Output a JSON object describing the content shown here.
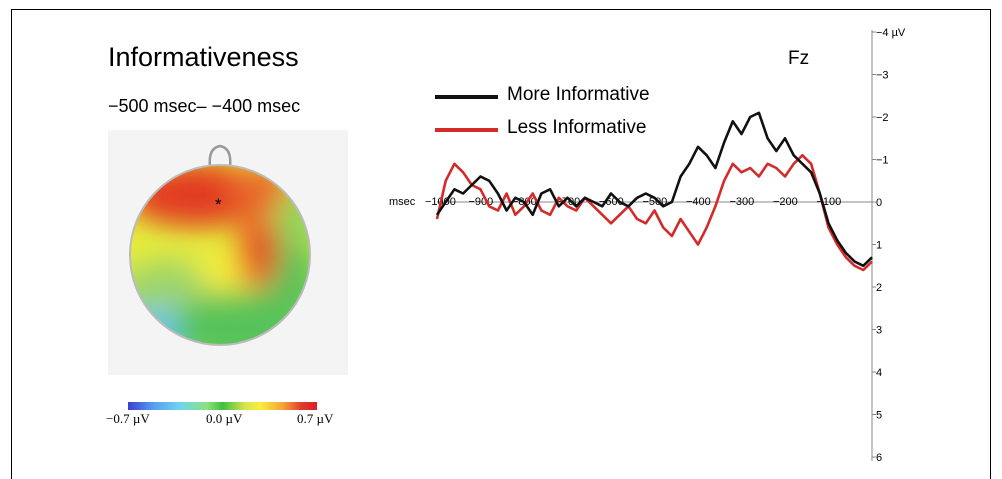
{
  "panel": {
    "title": "Informativeness",
    "window_label": "−500 msec– −400 msec",
    "electrode": "Fz",
    "topo_marker": "*"
  },
  "colorbar": {
    "min_label": "−0.7 µV",
    "mid_label": "0.0 µV",
    "max_label": "0.7 µV"
  },
  "colors": {
    "more_informative": "#111111",
    "less_informative": "#d42a2a"
  },
  "chart_data": {
    "type": "line",
    "title": "",
    "xlabel": "msec",
    "ylabel_unit": "µV",
    "xlim": [
      -1000,
      0
    ],
    "ylim": [
      -4,
      6
    ],
    "y_inverted": true,
    "x_tick_labels": [
      "−1000",
      "−900",
      "−800",
      "−700",
      "−600",
      "−500",
      "−400",
      "−300",
      "−200",
      "−100"
    ],
    "x_tick_values": [
      -1000,
      -900,
      -800,
      -700,
      -600,
      -500,
      -400,
      -300,
      -200,
      -100
    ],
    "y_tick_labels": [
      "−4 µV",
      "−3",
      "−2",
      "−1",
      "0",
      "1",
      "2",
      "3",
      "4",
      "5",
      "6"
    ],
    "y_tick_values": [
      -4,
      -3,
      -2,
      -1,
      0,
      1,
      2,
      3,
      4,
      5,
      6
    ],
    "legend": [
      "More Informative",
      "Less Informative"
    ],
    "legend_position": "top-left",
    "series": [
      {
        "name": "More Informative",
        "x": [
          -1000,
          -980,
          -960,
          -940,
          -920,
          -900,
          -880,
          -860,
          -840,
          -820,
          -800,
          -780,
          -760,
          -740,
          -720,
          -700,
          -680,
          -660,
          -640,
          -620,
          -600,
          -580,
          -560,
          -540,
          -520,
          -500,
          -480,
          -460,
          -440,
          -420,
          -400,
          -380,
          -360,
          -340,
          -320,
          -300,
          -280,
          -260,
          -240,
          -220,
          -200,
          -180,
          -160,
          -140,
          -120,
          -100,
          -80,
          -60,
          -40,
          -20,
          0
        ],
        "y": [
          0.3,
          0.0,
          -0.3,
          -0.2,
          -0.4,
          -0.6,
          -0.5,
          -0.2,
          0.2,
          -0.1,
          0.0,
          0.3,
          -0.2,
          -0.3,
          0.1,
          -0.1,
          0.1,
          -0.1,
          0.0,
          0.1,
          -0.2,
          0.0,
          0.1,
          -0.1,
          -0.2,
          -0.1,
          0.1,
          0.0,
          -0.6,
          -0.9,
          -1.3,
          -1.1,
          -0.8,
          -1.4,
          -1.9,
          -1.6,
          -2.0,
          -2.1,
          -1.5,
          -1.2,
          -1.5,
          -1.1,
          -0.9,
          -0.7,
          -0.2,
          0.5,
          0.9,
          1.2,
          1.4,
          1.5,
          1.3
        ]
      },
      {
        "name": "Less Informative",
        "x": [
          -1000,
          -980,
          -960,
          -940,
          -920,
          -900,
          -880,
          -860,
          -840,
          -820,
          -800,
          -780,
          -760,
          -740,
          -720,
          -700,
          -680,
          -660,
          -640,
          -620,
          -600,
          -580,
          -560,
          -540,
          -520,
          -500,
          -480,
          -460,
          -440,
          -420,
          -400,
          -380,
          -360,
          -340,
          -320,
          -300,
          -280,
          -260,
          -240,
          -220,
          -200,
          -180,
          -160,
          -140,
          -120,
          -100,
          -80,
          -60,
          -40,
          -20,
          0
        ],
        "y": [
          0.4,
          -0.5,
          -0.9,
          -0.7,
          -0.4,
          -0.3,
          0.1,
          0.2,
          -0.2,
          0.3,
          0.1,
          -0.2,
          0.2,
          0.3,
          -0.1,
          0.1,
          0.2,
          -0.1,
          0.1,
          0.3,
          0.5,
          0.3,
          0.1,
          0.4,
          0.5,
          0.2,
          0.6,
          0.8,
          0.4,
          0.7,
          1.0,
          0.6,
          0.1,
          -0.5,
          -0.9,
          -0.7,
          -0.8,
          -0.6,
          -0.9,
          -0.8,
          -0.6,
          -0.9,
          -1.1,
          -0.9,
          -0.2,
          0.6,
          1.0,
          1.3,
          1.5,
          1.6,
          1.4
        ]
      }
    ]
  }
}
